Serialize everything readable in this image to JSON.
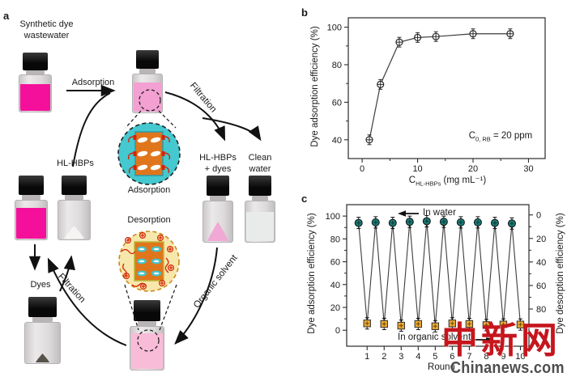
{
  "colors": {
    "dye_pink": "#f5109b",
    "pale_pink": "#f3a0d2",
    "light_pink": "#f9bcd8",
    "pile_pink": "#efa9d4",
    "powder_white": "#f5f4f2",
    "dark_pile": "#55534a",
    "clear_liquid": "#e9ebeb",
    "cyan_circle": "#45c8cf",
    "orange_block": "#e0761c",
    "cream_circle": "#f8e7ab",
    "cream_border": "#c98a1f",
    "red_accent": "#d42408",
    "teal_marker": "#1d7a74",
    "gold_marker": "#eaa733",
    "line_gray": "#3d3d3d",
    "watermark_red": "#c5161d",
    "watermark_gray": "#4d4e50"
  },
  "panel_a": {
    "tag": "a",
    "labels": {
      "synthetic_dye_wastewater": "Synthetic dye\nwastewater",
      "adsorption": "Adsorption",
      "filtration_right": "Filtration",
      "hl_hbps": "HL-HBPs",
      "adsorption_zoom": "Adsorption",
      "desorption_zoom": "Desorption",
      "hl_hbps_dyes": "HL-HBPs\n+ dyes",
      "clean_water": "Clean\nwater",
      "dyes": "Dyes",
      "filtration_left": "Filtration",
      "organic_solvent": "Organic solvent"
    }
  },
  "panel_b": {
    "tag": "b",
    "ylabel": "Dye adsorption efficiency (%)",
    "xlabel": {
      "main": "C",
      "sub": "HL-HBPs",
      "rest": " (mg mL⁻¹)"
    },
    "annotation": {
      "main": "C",
      "sub": "0, RB",
      "rest": " = 20 ppm"
    }
  },
  "panel_c": {
    "tag": "c",
    "ylabel_left": "Dye adsorption efficiency (%)",
    "ylabel_right": "Dye desorption efficiency (%)",
    "xlabel": "Round",
    "note_top": "In water",
    "note_bottom": "In organic solvent"
  },
  "watermark": {
    "cn": "中新网",
    "en": "Chinanews.com"
  },
  "chart_data": [
    {
      "panel": "b",
      "type": "line",
      "title": "",
      "xlabel": "C_HL-HBPs (mg mL^-1)",
      "ylabel": "Dye adsorption efficiency (%)",
      "x": [
        1.3,
        3.3,
        6.7,
        10,
        13.3,
        20,
        26.7
      ],
      "y": [
        40,
        69.5,
        92,
        94.5,
        95,
        96.5,
        96.5
      ],
      "yerr": 2,
      "xticks": [
        0,
        10,
        20,
        30
      ],
      "xticks_minor": [
        5,
        15,
        25
      ],
      "yticks": [
        40,
        60,
        80,
        100
      ],
      "yticks_minor": [
        50,
        70,
        90
      ],
      "xlim": [
        -2.5,
        33
      ],
      "ylim": [
        30,
        105
      ],
      "annotation": "C_0,RB = 20 ppm",
      "marker": "open-circle-error-bar",
      "grid": false,
      "legend_position": "none"
    },
    {
      "panel": "c",
      "type": "line",
      "title": "",
      "xlabel": "Round",
      "ylabel_left": "Dye adsorption efficiency (%)",
      "ylabel_right": "Dye desorption efficiency (%)",
      "series": [
        {
          "name": "In water (adsorption, left axis)",
          "marker": "circle",
          "color": "#1d7a74",
          "x": [
            0.5,
            1.5,
            2.5,
            3.5,
            4.5,
            5.5,
            6.5,
            7.5,
            8.5,
            9.5
          ],
          "y": [
            94,
            94.5,
            94,
            95,
            95.5,
            95,
            94.5,
            94.5,
            94,
            93.5
          ]
        },
        {
          "name": "In organic solvent (desorption, right axis ~95%)",
          "marker": "square",
          "color": "#eaa733",
          "x": [
            1,
            2,
            3,
            4,
            5,
            6,
            7,
            8,
            9,
            10
          ],
          "y": [
            6,
            5.5,
            4,
            5.5,
            3.5,
            6,
            5.5,
            4.5,
            5,
            5
          ]
        }
      ],
      "yerr": 3,
      "xticks": [
        1,
        2,
        3,
        4,
        5,
        6,
        7,
        8,
        9,
        10
      ],
      "yticks_left": [
        0,
        20,
        40,
        60,
        80,
        100
      ],
      "yticks_left_minor": [
        10,
        30,
        50,
        70,
        90
      ],
      "yticks_right": [
        0,
        20,
        40,
        60,
        80
      ],
      "yticks_right_minor": [
        10,
        30,
        50,
        70
      ],
      "right_axis_inverted": true,
      "xlim": [
        -0.2,
        10.5
      ],
      "ylim_left": [
        -14,
        110
      ],
      "grid": false,
      "legend_position": "none"
    }
  ]
}
